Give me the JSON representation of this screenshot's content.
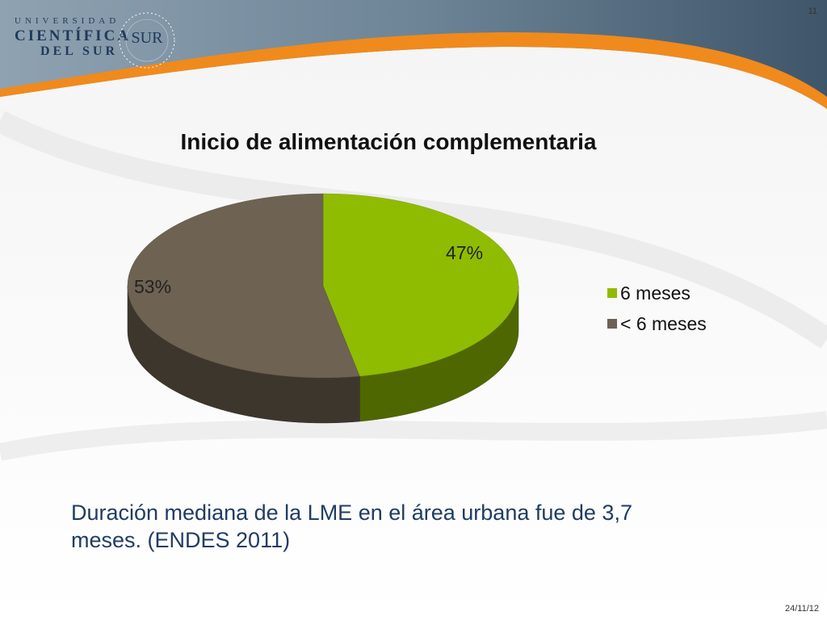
{
  "header": {
    "logo_line1": "UNIVERSIDAD",
    "logo_line2": "CIENTÍFICA",
    "logo_line3": "DEL SUR",
    "seal_text": "SUR",
    "slide_number": "11"
  },
  "chart_data": {
    "type": "pie",
    "title": "Inicio de alimentación complementaria",
    "slices": [
      {
        "name": "6 meses",
        "value": 47,
        "label": "47%",
        "color": "#8fbc00"
      },
      {
        "name": "< 6 meses",
        "value": 53,
        "label": "53%",
        "color": "#6e6252"
      }
    ],
    "legend_position": "right",
    "three_d": true
  },
  "footnote": "Duración mediana de la LME en el área urbana fue de 3,7 meses. (ENDES 2011)",
  "footer": {
    "date": "24/11/12"
  },
  "colors": {
    "header_dark": "#3c5468",
    "header_orange": "#f08a1c",
    "text_blue": "#1f3d63"
  }
}
